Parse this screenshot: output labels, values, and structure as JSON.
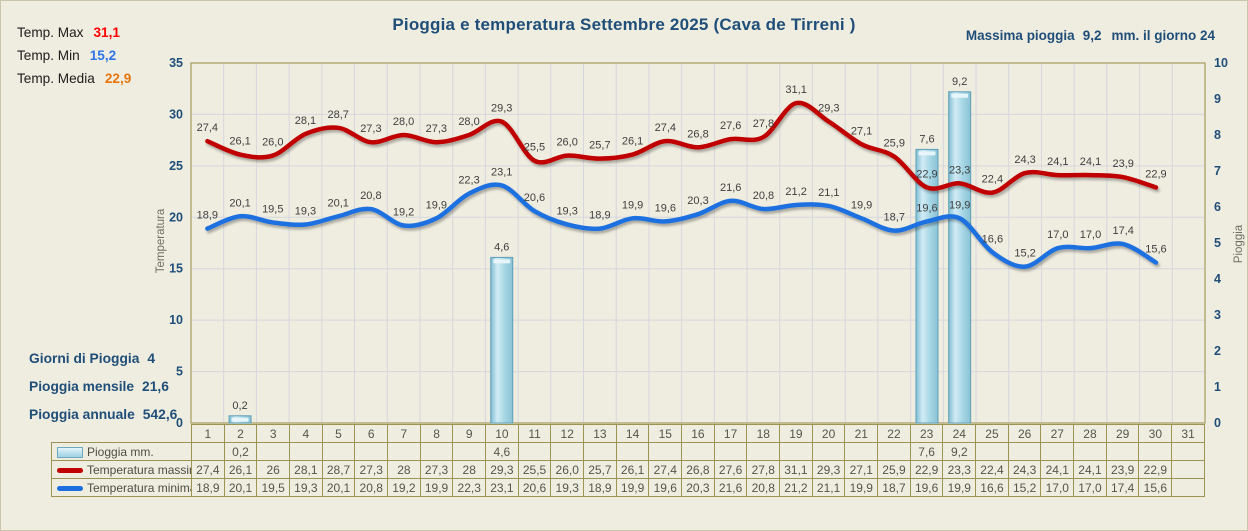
{
  "header": {
    "title": "Pioggia e temperatura Settembre 2025 (Cava de Tirreni )",
    "max_rain_note": {
      "prefix": "Massima pioggia",
      "value": "9,2",
      "suffix": "mm. il giorno 24"
    }
  },
  "stats_top": {
    "items": [
      {
        "label": "Temp. Max",
        "value": "31,1",
        "color": "#FF0000"
      },
      {
        "label": "Temp. Min",
        "value": "15,2",
        "color": "#2E74E8"
      },
      {
        "label": "Temp. Media",
        "value": "22,9",
        "color": "#E8750C"
      }
    ]
  },
  "stats_bottom": {
    "items": [
      {
        "label": "Giorni di Pioggia",
        "value": "4"
      },
      {
        "label": "Pioggia mensile",
        "value": "21,6"
      },
      {
        "label": "Pioggia annuale",
        "value": "542,6"
      }
    ]
  },
  "chart_data": {
    "type": "combo",
    "title": "Pioggia e temperatura Settembre 2025 (Cava de Tirreni )",
    "x_days": [
      1,
      2,
      3,
      4,
      5,
      6,
      7,
      8,
      9,
      10,
      11,
      12,
      13,
      14,
      15,
      16,
      17,
      18,
      19,
      20,
      21,
      22,
      23,
      24,
      25,
      26,
      27,
      28,
      29,
      30,
      31
    ],
    "left_axis": {
      "title": "Temperatura",
      "ticks": [
        0,
        5,
        10,
        15,
        20,
        25,
        30,
        35
      ],
      "range": [
        0,
        35
      ]
    },
    "right_axis": {
      "title": "Pioggia",
      "ticks": [
        0,
        1,
        2,
        3,
        4,
        5,
        6,
        7,
        8,
        9,
        10
      ],
      "range": [
        0,
        10
      ]
    },
    "grid": true,
    "series": [
      {
        "name": "Pioggia mm.",
        "type": "bar",
        "axis": "right",
        "color": "#A9D6E5",
        "border": "#5E9FB8",
        "values": [
          null,
          0.2,
          null,
          null,
          null,
          null,
          null,
          null,
          null,
          4.6,
          null,
          null,
          null,
          null,
          null,
          null,
          null,
          null,
          null,
          null,
          null,
          null,
          7.6,
          9.2,
          null,
          null,
          null,
          null,
          null,
          null,
          null
        ]
      },
      {
        "name": "Temperatura massima",
        "type": "line",
        "axis": "left",
        "color": "#C00000",
        "values": [
          27.4,
          26.1,
          26,
          28.1,
          28.7,
          27.3,
          28,
          27.3,
          28,
          29.3,
          25.5,
          26,
          25.7,
          26.1,
          27.4,
          26.8,
          27.6,
          27.8,
          31.1,
          29.3,
          27.1,
          25.9,
          22.9,
          23.3,
          22.4,
          24.3,
          24.1,
          24.1,
          23.9,
          22.9,
          null
        ]
      },
      {
        "name": "Temperatura minima",
        "type": "line",
        "axis": "left",
        "color": "#1E6FE0",
        "values": [
          18.9,
          20.1,
          19.5,
          19.3,
          20.1,
          20.8,
          19.2,
          19.9,
          22.3,
          23.1,
          20.6,
          19.3,
          18.9,
          19.9,
          19.6,
          20.3,
          21.6,
          20.8,
          21.2,
          21.1,
          19.9,
          18.7,
          19.6,
          19.9,
          16.6,
          15.2,
          17,
          17,
          17.4,
          15.6,
          null
        ]
      }
    ],
    "label_color": "#3F3F3F",
    "tick_color": "#1F4E79"
  },
  "table": {
    "rows": [
      {
        "legend": "Pioggia mm.",
        "swatch": "bar",
        "cells": [
          "",
          "0,2",
          "",
          "",
          "",
          "",
          "",
          "",
          "",
          "4,6",
          "",
          "",
          "",
          "",
          "",
          "",
          "",
          "",
          "",
          "",
          "",
          "",
          "7,6",
          "9,2",
          "",
          "",
          "",
          "",
          "",
          "",
          ""
        ]
      },
      {
        "legend": "Temperatura massima",
        "swatch": "line-red",
        "cells": [
          "27,4",
          "26,1",
          "26",
          "28,1",
          "28,7",
          "27,3",
          "28",
          "27,3",
          "28",
          "29,3",
          "25,5",
          "26,0",
          "25,7",
          "26,1",
          "27,4",
          "26,8",
          "27,6",
          "27,8",
          "31,1",
          "29,3",
          "27,1",
          "25,9",
          "22,9",
          "23,3",
          "22,4",
          "24,3",
          "24,1",
          "24,1",
          "23,9",
          "22,9",
          ""
        ]
      },
      {
        "legend": "Temperatura minima",
        "swatch": "line-blue",
        "cells": [
          "18,9",
          "20,1",
          "19,5",
          "19,3",
          "20,1",
          "20,8",
          "19,2",
          "19,9",
          "22,3",
          "23,1",
          "20,6",
          "19,3",
          "18,9",
          "19,9",
          "19,6",
          "20,3",
          "21,6",
          "20,8",
          "21,2",
          "21,1",
          "19,9",
          "18,7",
          "19,6",
          "19,9",
          "16,6",
          "15,2",
          "17,0",
          "17,0",
          "17,4",
          "15,6",
          ""
        ]
      }
    ]
  },
  "colors": {
    "background": "#EFEDE0",
    "navy": "#1F4E79",
    "grid": "#D6D6DE",
    "table_border": "#9C9355"
  }
}
